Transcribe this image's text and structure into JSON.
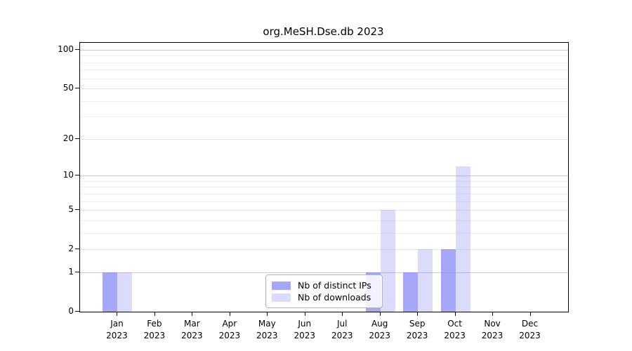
{
  "chart_data": {
    "type": "bar",
    "title": "org.MeSH.Dse.db 2023",
    "scale": "log1p",
    "categories": [
      "Jan",
      "Feb",
      "Mar",
      "Apr",
      "May",
      "Jun",
      "Jul",
      "Aug",
      "Sep",
      "Oct",
      "Nov",
      "Dec"
    ],
    "year": "2023",
    "series": [
      {
        "name": "Nb of distinct IPs",
        "color": "rgba(122,122,244,0.66)",
        "values": [
          1,
          0,
          0,
          0,
          0,
          0,
          0,
          1,
          1,
          2,
          0,
          0
        ]
      },
      {
        "name": "Nb of downloads",
        "color": "rgba(122,122,244,0.27)",
        "values": [
          1,
          0,
          0,
          0,
          0,
          0,
          0,
          5,
          2,
          12,
          0,
          0
        ]
      }
    ],
    "y_ticks": [
      100,
      50,
      20,
      10,
      5,
      2,
      1,
      0
    ],
    "major_gridlines": [
      1,
      10,
      100
    ],
    "labeled_gridlines": [
      2,
      5,
      20,
      50
    ],
    "minor_gridlines": [
      3,
      4,
      6,
      7,
      8,
      9,
      30,
      40,
      60,
      70,
      80,
      90
    ],
    "ylim": [
      0,
      115
    ],
    "grid": "horizontal",
    "legend_position": "bottom-center-inside"
  }
}
